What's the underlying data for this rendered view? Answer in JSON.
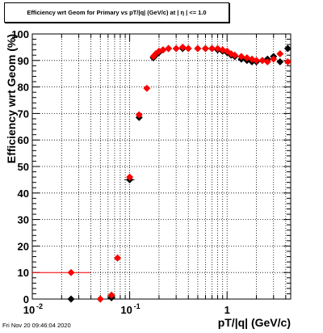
{
  "title": "Efficiency wrt Geom for Primary vs pT/|q| (GeV/c) at | η | <= 1.0",
  "timestamp": "Fri Nov 20 09:46:04 2020",
  "chart_data": {
    "type": "scatter",
    "title": "Efficiency wrt Geom for Primary vs pT/|q| (GeV/c) at | η | <= 1.0",
    "xlabel": "pT/|q| (GeV/c)",
    "ylabel": "Efficiency wrt Geom (%)",
    "xscale": "log",
    "xlim": [
      0.01,
      4.5
    ],
    "ylim": [
      0,
      100
    ],
    "x_tick_labels": [
      "10",
      "10",
      "1"
    ],
    "x_tick_exponents": [
      "-2",
      "-1",
      ""
    ],
    "y_tick_labels": [
      "0",
      "10",
      "20",
      "30",
      "40",
      "50",
      "60",
      "70",
      "80",
      "90",
      "100"
    ],
    "y_ticks": [
      0,
      10,
      20,
      30,
      40,
      50,
      60,
      70,
      80,
      90,
      100
    ],
    "grid": true,
    "legend": "none",
    "series": [
      {
        "color": "#000000",
        "marker": "diamond",
        "points": [
          {
            "x": 0.025,
            "y": 0,
            "ex": 0.0
          },
          {
            "x": 0.05,
            "y": 0,
            "ex": 0.0
          },
          {
            "x": 0.065,
            "y": 0.5,
            "ex": 0.0
          },
          {
            "x": 0.075,
            "y": 15.5,
            "ex": 0.0
          },
          {
            "x": 0.1,
            "y": 45,
            "ex": 0.012
          },
          {
            "x": 0.125,
            "y": 68.5,
            "ex": 0.0
          },
          {
            "x": 0.175,
            "y": 91,
            "ex": 0
          },
          {
            "x": 0.185,
            "y": 92,
            "ex": 0
          },
          {
            "x": 0.2,
            "y": 93,
            "ex": 0
          },
          {
            "x": 0.22,
            "y": 94,
            "ex": 0
          },
          {
            "x": 0.25,
            "y": 94.5,
            "ex": 0
          },
          {
            "x": 0.3,
            "y": 94.5,
            "ex": 0
          },
          {
            "x": 0.35,
            "y": 94.5,
            "ex": 0
          },
          {
            "x": 0.4,
            "y": 94.5,
            "ex": 0
          },
          {
            "x": 0.5,
            "y": 94.5,
            "ex": 0
          },
          {
            "x": 0.6,
            "y": 94.5,
            "ex": 0
          },
          {
            "x": 0.7,
            "y": 94.5,
            "ex": 0
          },
          {
            "x": 0.8,
            "y": 94,
            "ex": 0
          },
          {
            "x": 0.9,
            "y": 93.5,
            "ex": 0
          },
          {
            "x": 1.0,
            "y": 93,
            "ex": 0
          },
          {
            "x": 1.1,
            "y": 92,
            "ex": 0
          },
          {
            "x": 1.2,
            "y": 91.5,
            "ex": 0
          },
          {
            "x": 1.4,
            "y": 90.5,
            "ex": 0
          },
          {
            "x": 1.6,
            "y": 90,
            "ex": 0
          },
          {
            "x": 1.8,
            "y": 89.5,
            "ex": 0
          },
          {
            "x": 2.0,
            "y": 89.5,
            "ex": 0
          },
          {
            "x": 2.3,
            "y": 90,
            "ex": 0
          },
          {
            "x": 2.6,
            "y": 90.5,
            "ex": 0
          },
          {
            "x": 3.0,
            "y": 91.5,
            "ex": 0
          },
          {
            "x": 3.5,
            "y": 89.5,
            "ex": 0
          },
          {
            "x": 4.2,
            "y": 94.5,
            "ex": 0
          }
        ]
      },
      {
        "color": "#ff0000",
        "marker": "diamond",
        "points": [
          {
            "x": 0.025,
            "y": 10,
            "ex": 0.015
          },
          {
            "x": 0.05,
            "y": 0,
            "ex": 0.0
          },
          {
            "x": 0.065,
            "y": 1.5,
            "ex": 0.0
          },
          {
            "x": 0.075,
            "y": 15.5,
            "ex": 0.0
          },
          {
            "x": 0.1,
            "y": 46,
            "ex": 0.0
          },
          {
            "x": 0.125,
            "y": 69.5,
            "ex": 0.0
          },
          {
            "x": 0.15,
            "y": 79.5,
            "ex": 0
          },
          {
            "x": 0.175,
            "y": 91.5,
            "ex": 0
          },
          {
            "x": 0.185,
            "y": 92.5,
            "ex": 0
          },
          {
            "x": 0.2,
            "y": 93.5,
            "ex": 0
          },
          {
            "x": 0.22,
            "y": 94,
            "ex": 0
          },
          {
            "x": 0.25,
            "y": 94.5,
            "ex": 0
          },
          {
            "x": 0.3,
            "y": 94.5,
            "ex": 0
          },
          {
            "x": 0.35,
            "y": 95,
            "ex": 0
          },
          {
            "x": 0.4,
            "y": 94.5,
            "ex": 0
          },
          {
            "x": 0.5,
            "y": 94.5,
            "ex": 0
          },
          {
            "x": 0.6,
            "y": 94.5,
            "ex": 0
          },
          {
            "x": 0.7,
            "y": 94.5,
            "ex": 0
          },
          {
            "x": 0.8,
            "y": 94.5,
            "ex": 0
          },
          {
            "x": 0.9,
            "y": 94,
            "ex": 0
          },
          {
            "x": 1.0,
            "y": 93.5,
            "ex": 0
          },
          {
            "x": 1.1,
            "y": 92.5,
            "ex": 0
          },
          {
            "x": 1.2,
            "y": 92,
            "ex": 0
          },
          {
            "x": 1.4,
            "y": 91.5,
            "ex": 0
          },
          {
            "x": 1.6,
            "y": 91,
            "ex": 0
          },
          {
            "x": 1.8,
            "y": 90.5,
            "ex": 0
          },
          {
            "x": 2.0,
            "y": 90,
            "ex": 0
          },
          {
            "x": 2.3,
            "y": 90,
            "ex": 0
          },
          {
            "x": 2.6,
            "y": 89.5,
            "ex": 0
          },
          {
            "x": 3.0,
            "y": 90.5,
            "ex": 0
          },
          {
            "x": 3.5,
            "y": 92.5,
            "ex": 0
          },
          {
            "x": 4.2,
            "y": 89.5,
            "ex": 0
          }
        ]
      }
    ]
  }
}
